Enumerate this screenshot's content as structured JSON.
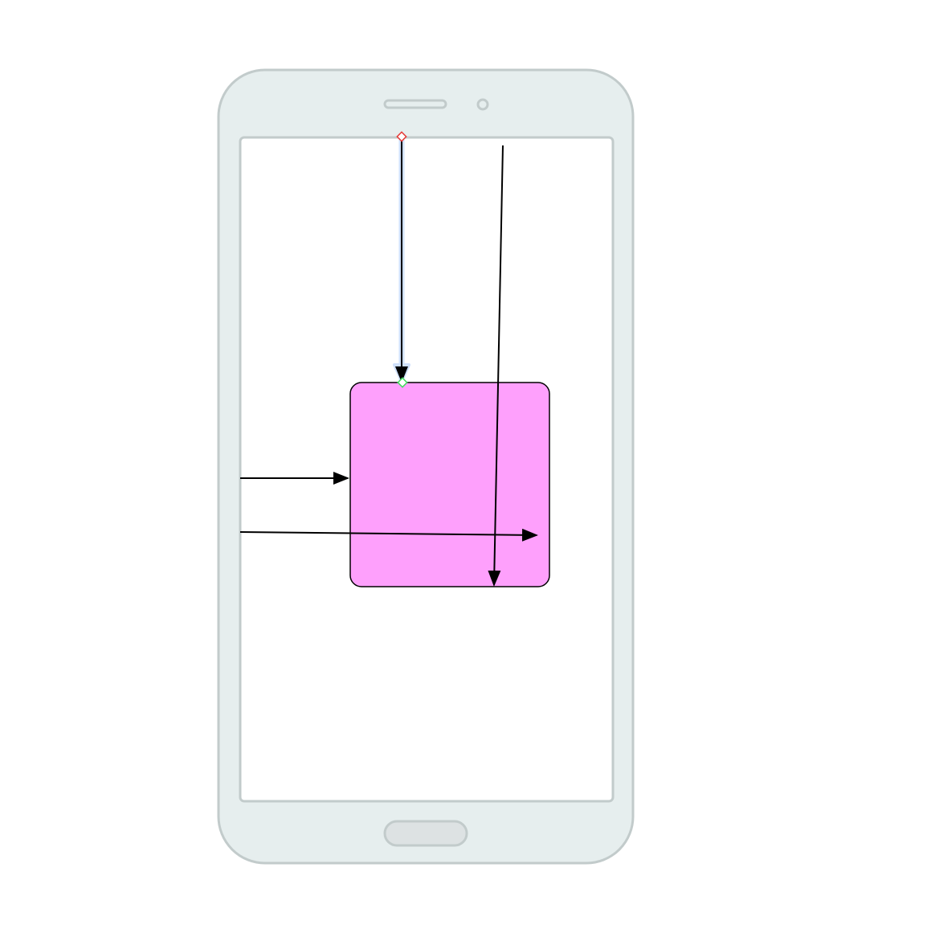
{
  "diagram": {
    "device": {
      "kind": "smartphone",
      "body_color": "#e6eeee",
      "outline_color": "#c2cbcb",
      "screen_color": "#ffffff",
      "home_button_color": "#dde2e3"
    },
    "block": {
      "fill_color": "#fea0fc",
      "stroke_color": "#000000"
    },
    "connectors": {
      "stroke_color": "#000000",
      "selection_halo_color": "#cfe0fb",
      "source_handle_color": "#e53935",
      "target_handle_color": "#3ddc5b",
      "items": [
        {
          "id": "selected-vertical-connector",
          "selected": true
        },
        {
          "id": "long-vertical-connector",
          "selected": false
        },
        {
          "id": "left-to-block-connector",
          "selected": false
        },
        {
          "id": "left-across-block-connector",
          "selected": false
        }
      ]
    }
  }
}
